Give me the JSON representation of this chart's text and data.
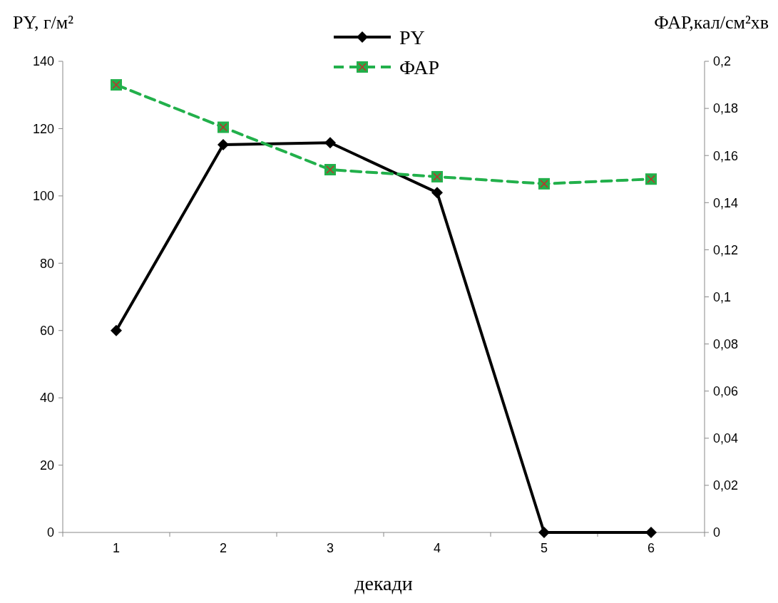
{
  "chart_data": {
    "type": "line",
    "xlabel": "декади",
    "ylabel": "РY, г/м²",
    "y2label": "ФАР,кал/см²хв",
    "categories": [
      "1",
      "2",
      "3",
      "4",
      "5",
      "6"
    ],
    "series": [
      {
        "name": "РY",
        "color": "#000000",
        "values": [
          60,
          115.2,
          115.8,
          101,
          0,
          0
        ],
        "marker": "diamond",
        "line_style": "solid"
      },
      {
        "name": "ФАР",
        "color": "#22b04b",
        "values": [
          0.19,
          0.172,
          0.154,
          0.151,
          0.148,
          0.15
        ],
        "marker": "square",
        "line_style": "dashed",
        "axis": "y2"
      }
    ],
    "ylim": [
      0,
      140
    ],
    "yticks": [
      0,
      20,
      40,
      60,
      80,
      100,
      120,
      140
    ],
    "y2lim": [
      0,
      0.2
    ],
    "y2ticks": [
      0,
      {
        "value": 0.02,
        "label": "0,02"
      },
      {
        "value": 0.04,
        "label": "0,04"
      },
      {
        "value": 0.06,
        "label": "0,06"
      },
      {
        "value": 0.08,
        "label": "0,08"
      },
      {
        "value": 0.1,
        "label": "0,1"
      },
      {
        "value": 0.12,
        "label": "0,12"
      },
      {
        "value": 0.14,
        "label": "0,14"
      },
      {
        "value": 0.16,
        "label": "0,16"
      },
      {
        "value": 0.18,
        "label": "0,18"
      },
      {
        "value": 0.2,
        "label": "0,2"
      }
    ],
    "legend": "top",
    "grid": false
  }
}
